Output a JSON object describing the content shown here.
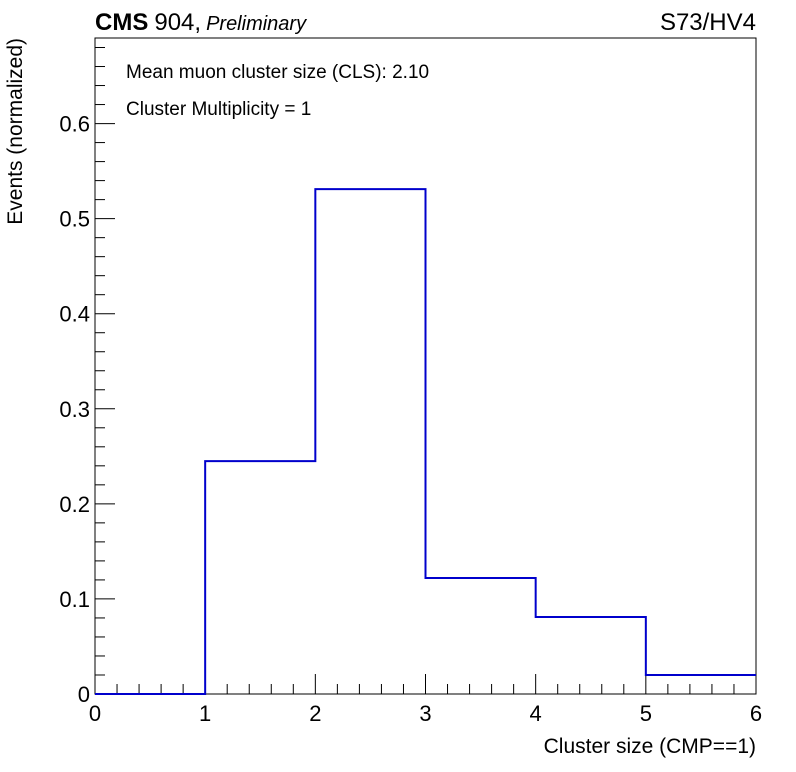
{
  "header": {
    "experiment": "CMS",
    "facility": "904,",
    "status": "Preliminary",
    "run_label": "S73/HV4"
  },
  "annotations": {
    "mean_cls": "Mean muon cluster size (CLS): 2.10",
    "multiplicity": "Cluster Multiplicity = 1"
  },
  "chart_data": {
    "type": "histogram",
    "xlabel": "Cluster size (CMP==1)",
    "ylabel": "Events (normalized)",
    "xlim": [
      0,
      6
    ],
    "ylim": [
      0,
      0.69
    ],
    "bin_edges": [
      0,
      1,
      2,
      3,
      4,
      5,
      6
    ],
    "values": [
      0.0,
      0.245,
      0.531,
      0.122,
      0.081,
      0.02
    ],
    "x_ticks": [
      0,
      1,
      2,
      3,
      4,
      5,
      6
    ],
    "x_tick_labels": [
      "0",
      "1",
      "2",
      "3",
      "4",
      "5",
      "6"
    ],
    "y_ticks": [
      0,
      0.1,
      0.2,
      0.3,
      0.4,
      0.5,
      0.6
    ],
    "y_tick_labels": [
      "0",
      "0.1",
      "0.2",
      "0.3",
      "0.4",
      "0.5",
      "0.6"
    ],
    "grid": false,
    "line_color": "#0000cc"
  }
}
